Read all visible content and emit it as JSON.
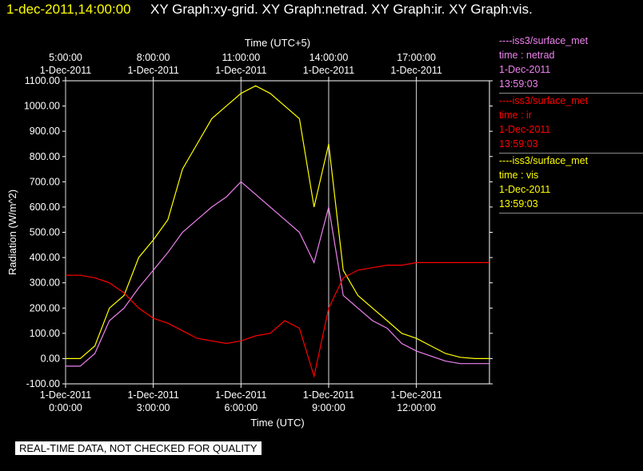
{
  "header": {
    "timestamp": "1-dec-2011,14:00:00",
    "graphs": "XY Graph:xy-grid.  XY Graph:netrad.  XY Graph:ir.  XY Graph:vis."
  },
  "notice": "REAL-TIME DATA, NOT CHECKED FOR QUALITY",
  "legend": [
    {
      "line": "----iss3/surface_met",
      "var": "time : netrad",
      "date": "1-Dec-2011",
      "time": "13:59:03",
      "color": "#ee82ee"
    },
    {
      "line": "----iss3/surface_met",
      "var": "time : ir",
      "date": "1-Dec-2011",
      "time": "13:59:03",
      "color": "#ff0000"
    },
    {
      "line": "----iss3/surface_met",
      "var": "time : vis",
      "date": "1-Dec-2011",
      "time": "13:59:03",
      "color": "#ffff00"
    }
  ],
  "chart_data": {
    "type": "line",
    "ylabel": "Radiation (W/m^2)",
    "xlabel_bottom": "Time (UTC)",
    "xlabel_top": "Time (UTC+5)",
    "ylim": [
      -100,
      1100
    ],
    "xlim_hours_utc": [
      0,
      14.5
    ],
    "yticks": [
      "-100.00",
      "0.00",
      "100.00",
      "200.00",
      "300.00",
      "400.00",
      "500.00",
      "600.00",
      "700.00",
      "800.00",
      "900.00",
      "1000.00",
      "1100.00"
    ],
    "xticks_bottom": [
      {
        "hour": 0,
        "date": "1-Dec-2011",
        "time": "0:00:00"
      },
      {
        "hour": 3,
        "date": "1-Dec-2011",
        "time": "3:00:00"
      },
      {
        "hour": 6,
        "date": "1-Dec-2011",
        "time": "6:00:00"
      },
      {
        "hour": 9,
        "date": "1-Dec-2011",
        "time": "9:00:00"
      },
      {
        "hour": 12,
        "date": "1-Dec-2011",
        "time": "12:00:00"
      }
    ],
    "xticks_top": [
      {
        "hour": 0,
        "time": "5:00:00",
        "date": "1-Dec-2011"
      },
      {
        "hour": 3,
        "time": "8:00:00",
        "date": "1-Dec-2011"
      },
      {
        "hour": 6,
        "time": "11:00:00",
        "date": "1-Dec-2011"
      },
      {
        "hour": 9,
        "time": "14:00:00",
        "date": "1-Dec-2011"
      },
      {
        "hour": 12,
        "time": "17:00:00",
        "date": "1-Dec-2011"
      }
    ],
    "grid": true,
    "series": [
      {
        "name": "vis",
        "color": "#ffff00",
        "x": [
          0,
          0.5,
          1.0,
          1.5,
          2.0,
          2.5,
          3.0,
          3.5,
          4.0,
          4.5,
          5.0,
          5.5,
          6.0,
          6.5,
          7.0,
          7.5,
          8.0,
          8.5,
          9.0,
          9.5,
          10.0,
          10.5,
          11.0,
          11.5,
          12.0,
          12.5,
          13.0,
          13.5,
          14.0,
          14.5
        ],
        "values": [
          0,
          0,
          50,
          200,
          250,
          400,
          470,
          550,
          750,
          850,
          950,
          1000,
          1050,
          1080,
          1050,
          1000,
          950,
          600,
          850,
          350,
          250,
          200,
          150,
          100,
          80,
          50,
          20,
          5,
          0,
          0
        ]
      },
      {
        "name": "netrad",
        "color": "#ee82ee",
        "x": [
          0,
          0.5,
          1.0,
          1.5,
          2.0,
          2.5,
          3.0,
          3.5,
          4.0,
          4.5,
          5.0,
          5.5,
          6.0,
          6.5,
          7.0,
          7.5,
          8.0,
          8.5,
          9.0,
          9.5,
          10.0,
          10.5,
          11.0,
          11.5,
          12.0,
          12.5,
          13.0,
          13.5,
          14.0,
          14.5
        ],
        "values": [
          -30,
          -30,
          20,
          150,
          200,
          280,
          350,
          420,
          500,
          550,
          600,
          640,
          700,
          650,
          600,
          550,
          500,
          380,
          600,
          250,
          200,
          150,
          120,
          60,
          30,
          10,
          -10,
          -20,
          -20,
          -20
        ]
      },
      {
        "name": "ir",
        "color": "#ff0000",
        "x": [
          0,
          0.5,
          1.0,
          1.5,
          2.0,
          2.5,
          3.0,
          3.5,
          4.0,
          4.5,
          5.0,
          5.5,
          6.0,
          6.5,
          7.0,
          7.5,
          8.0,
          8.5,
          9.0,
          9.5,
          10.0,
          10.5,
          11.0,
          11.5,
          12.0,
          12.5,
          13.0,
          13.5,
          14.0,
          14.5
        ],
        "values": [
          330,
          330,
          320,
          300,
          260,
          200,
          160,
          140,
          110,
          80,
          70,
          60,
          70,
          90,
          100,
          150,
          120,
          -70,
          200,
          320,
          350,
          360,
          370,
          370,
          380,
          380,
          380,
          380,
          380,
          380
        ]
      }
    ]
  }
}
